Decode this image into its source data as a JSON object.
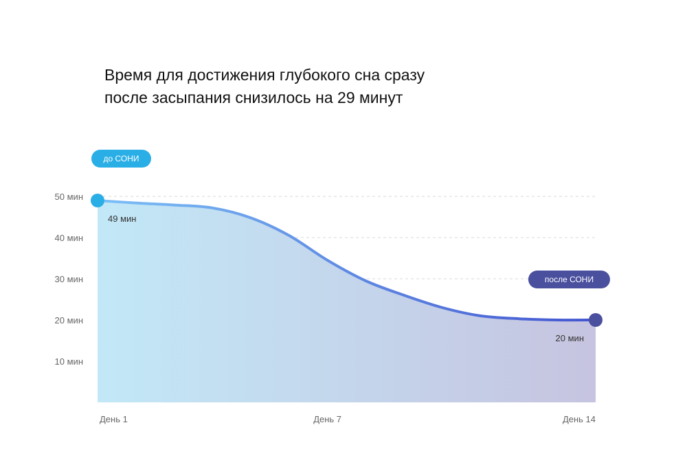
{
  "title": {
    "line1": "Время для достижения глубокого сна сразу",
    "line2": "после засыпания снизилось на 29 минут"
  },
  "badges": {
    "before": "до СОНИ",
    "after": "после СОНИ"
  },
  "colors": {
    "accent_before": "#2aaee6",
    "accent_after": "#4a4f9e",
    "line_start": "#7cc0f7",
    "line_end": "#4355d0",
    "area_start": "#c2e8f7",
    "area_end": "#c6c4e0",
    "grid": "#d9d9d9",
    "axis_text": "#666666"
  },
  "chart_data": {
    "type": "area",
    "title": "Время для достижения глубокого сна сразу после засыпания снизилось на 29 минут",
    "x_ticks": [
      {
        "x": 1,
        "label": "День 1"
      },
      {
        "x": 7,
        "label": "День 7"
      },
      {
        "x": 14,
        "label": "День 14"
      }
    ],
    "y_ticks": [
      {
        "y": 10,
        "label": "10 мин"
      },
      {
        "y": 20,
        "label": "20 мин"
      },
      {
        "y": 30,
        "label": "30 мин"
      },
      {
        "y": 40,
        "label": "40 мин"
      },
      {
        "y": 50,
        "label": "50 мин"
      }
    ],
    "xlim": [
      1,
      14
    ],
    "ylim": [
      0,
      50
    ],
    "grid": "horizontal dashed",
    "series": [
      {
        "x": [
          1,
          2,
          3,
          4,
          5,
          6,
          7,
          8,
          9,
          10,
          11,
          12,
          13,
          14
        ],
        "y": [
          49,
          48.4,
          47.9,
          47.2,
          44.8,
          40.5,
          34.5,
          29.5,
          26,
          23,
          21,
          20.3,
          20,
          20
        ]
      }
    ],
    "annotations": [
      {
        "x": 1,
        "y": 49,
        "label": "49 мин"
      },
      {
        "x": 14,
        "y": 20,
        "label": "20 мин"
      }
    ]
  }
}
